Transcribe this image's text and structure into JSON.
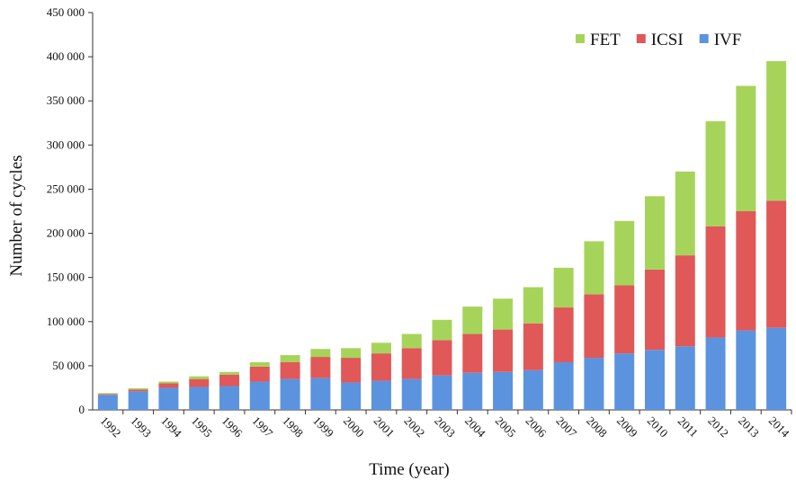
{
  "chart_data": {
    "type": "bar",
    "stacked": true,
    "x_label": "Time (year)",
    "y_label": "Number of cycles",
    "categories": [
      "1992",
      "1993",
      "1994",
      "1995",
      "1996",
      "1997",
      "1998",
      "1999",
      "2000",
      "2001",
      "2002",
      "2003",
      "2004",
      "2005",
      "2006",
      "2007",
      "2008",
      "2009",
      "2010",
      "2011",
      "2012",
      "2013",
      "2014"
    ],
    "series": [
      {
        "name": "IVF",
        "color": "#5b93de",
        "values": [
          17000,
          21000,
          25000,
          26000,
          27000,
          32000,
          35000,
          36000,
          31000,
          33000,
          35000,
          39000,
          42000,
          43000,
          45000,
          54000,
          59000,
          64000,
          68000,
          72000,
          82000,
          90000,
          93000
        ]
      },
      {
        "name": "ICSI",
        "color": "#e05858",
        "values": [
          1000,
          2000,
          5000,
          9000,
          13000,
          17000,
          19000,
          24000,
          28000,
          31000,
          35000,
          40000,
          44000,
          48000,
          53000,
          62000,
          72000,
          77000,
          91000,
          103000,
          126000,
          135000,
          144000
        ]
      },
      {
        "name": "FET",
        "color": "#a6d45a",
        "values": [
          1000,
          1500,
          2000,
          3000,
          3000,
          5000,
          8000,
          9000,
          11000,
          12000,
          16000,
          23000,
          31000,
          35000,
          41000,
          45000,
          60000,
          73000,
          83000,
          95000,
          119000,
          142000,
          158000
        ]
      }
    ],
    "ylim": [
      0,
      450000
    ],
    "yticks": [
      {
        "value": 0,
        "label": "0"
      },
      {
        "value": 50000,
        "label": "50 000"
      },
      {
        "value": 100000,
        "label": "100 000"
      },
      {
        "value": 150000,
        "label": "150 000"
      },
      {
        "value": 200000,
        "label": "200 000"
      },
      {
        "value": 250000,
        "label": "250 000"
      },
      {
        "value": 300000,
        "label": "300 000"
      },
      {
        "value": 350000,
        "label": "350 000"
      },
      {
        "value": 400000,
        "label": "400 000"
      },
      {
        "value": 450000,
        "label": "450 000"
      }
    ],
    "grid": false,
    "legend": "upper right"
  }
}
